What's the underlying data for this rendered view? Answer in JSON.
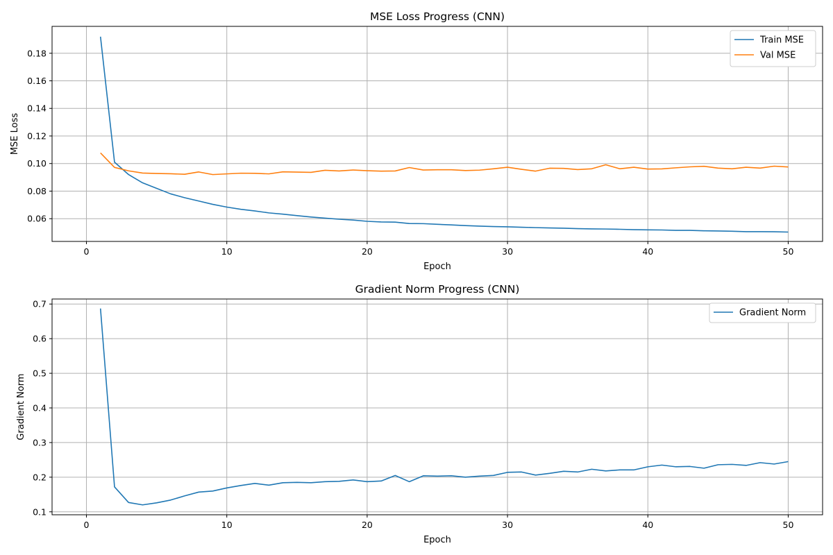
{
  "chart_data": [
    {
      "type": "line",
      "title": "MSE Loss Progress (CNN)",
      "xlabel": "Epoch",
      "ylabel": "MSE Loss",
      "xlim": [
        -2.45,
        52.45
      ],
      "ylim": [
        0.0435,
        0.1995
      ],
      "xticks": [
        0,
        10,
        20,
        30,
        40,
        50
      ],
      "xtick_labels": [
        "0",
        "10",
        "20",
        "30",
        "40",
        "50"
      ],
      "yticks": [
        0.06,
        0.08,
        0.1,
        0.12,
        0.14,
        0.16,
        0.18
      ],
      "ytick_labels": [
        "0.06",
        "0.08",
        "0.10",
        "0.12",
        "0.14",
        "0.16",
        "0.18"
      ],
      "grid": true,
      "legend_position": "upper right",
      "x": [
        1,
        2,
        3,
        4,
        5,
        6,
        7,
        8,
        9,
        10,
        11,
        12,
        13,
        14,
        15,
        16,
        17,
        18,
        19,
        20,
        21,
        22,
        23,
        24,
        25,
        26,
        27,
        28,
        29,
        30,
        31,
        32,
        33,
        34,
        35,
        36,
        37,
        38,
        39,
        40,
        41,
        42,
        43,
        44,
        45,
        46,
        47,
        48,
        49,
        50
      ],
      "series": [
        {
          "name": "Train MSE",
          "color": "#1f77b4",
          "values": [
            0.192,
            0.101,
            0.092,
            0.086,
            0.082,
            0.078,
            0.0752,
            0.0728,
            0.0704,
            0.0684,
            0.0668,
            0.0656,
            0.0642,
            0.0633,
            0.0622,
            0.0612,
            0.0604,
            0.0596,
            0.059,
            0.0581,
            0.0576,
            0.0575,
            0.0565,
            0.0564,
            0.0559,
            0.0555,
            0.055,
            0.0546,
            0.0543,
            0.0541,
            0.0538,
            0.0535,
            0.0533,
            0.0531,
            0.0528,
            0.0526,
            0.0525,
            0.0523,
            0.052,
            0.0519,
            0.0518,
            0.0515,
            0.0515,
            0.0512,
            0.0511,
            0.0509,
            0.0506,
            0.0506,
            0.0505,
            0.0503
          ]
        },
        {
          "name": "Val MSE",
          "color": "#ff7f0e",
          "values": [
            0.1077,
            0.0972,
            0.0947,
            0.0931,
            0.0928,
            0.0926,
            0.0922,
            0.0939,
            0.092,
            0.0925,
            0.093,
            0.0929,
            0.0925,
            0.094,
            0.0938,
            0.0936,
            0.0951,
            0.0946,
            0.0953,
            0.0948,
            0.0945,
            0.0946,
            0.0971,
            0.0953,
            0.0955,
            0.0955,
            0.0949,
            0.0952,
            0.0962,
            0.0973,
            0.0958,
            0.0945,
            0.0966,
            0.0965,
            0.0956,
            0.0962,
            0.0991,
            0.0962,
            0.0973,
            0.096,
            0.0961,
            0.0969,
            0.0976,
            0.098,
            0.0967,
            0.0962,
            0.0973,
            0.0967,
            0.0981,
            0.0975
          ]
        }
      ]
    },
    {
      "type": "line",
      "title": "Gradient Norm Progress (CNN)",
      "xlabel": "Epoch",
      "ylabel": "Gradient Norm",
      "xlim": [
        -2.45,
        52.45
      ],
      "ylim": [
        0.0915,
        0.7145
      ],
      "xticks": [
        0,
        10,
        20,
        30,
        40,
        50
      ],
      "xtick_labels": [
        "0",
        "10",
        "20",
        "30",
        "40",
        "50"
      ],
      "yticks": [
        0.1,
        0.2,
        0.3,
        0.4,
        0.5,
        0.6,
        0.7
      ],
      "ytick_labels": [
        "0.1",
        "0.2",
        "0.3",
        "0.4",
        "0.5",
        "0.6",
        "0.7"
      ],
      "grid": true,
      "legend_position": "upper right",
      "x": [
        1,
        2,
        3,
        4,
        5,
        6,
        7,
        8,
        9,
        10,
        11,
        12,
        13,
        14,
        15,
        16,
        17,
        18,
        19,
        20,
        21,
        22,
        23,
        24,
        25,
        26,
        27,
        28,
        29,
        30,
        31,
        32,
        33,
        34,
        35,
        36,
        37,
        38,
        39,
        40,
        41,
        42,
        43,
        44,
        45,
        46,
        47,
        48,
        49,
        50
      ],
      "series": [
        {
          "name": "Gradient Norm",
          "color": "#1f77b4",
          "values": [
            0.687,
            0.172,
            0.127,
            0.12,
            0.126,
            0.134,
            0.146,
            0.157,
            0.16,
            0.169,
            0.176,
            0.182,
            0.177,
            0.184,
            0.185,
            0.184,
            0.187,
            0.188,
            0.192,
            0.187,
            0.189,
            0.205,
            0.187,
            0.204,
            0.203,
            0.204,
            0.2,
            0.203,
            0.205,
            0.214,
            0.215,
            0.206,
            0.211,
            0.217,
            0.215,
            0.223,
            0.218,
            0.221,
            0.221,
            0.23,
            0.235,
            0.23,
            0.231,
            0.226,
            0.236,
            0.237,
            0.234,
            0.242,
            0.238,
            0.245
          ]
        }
      ]
    }
  ]
}
